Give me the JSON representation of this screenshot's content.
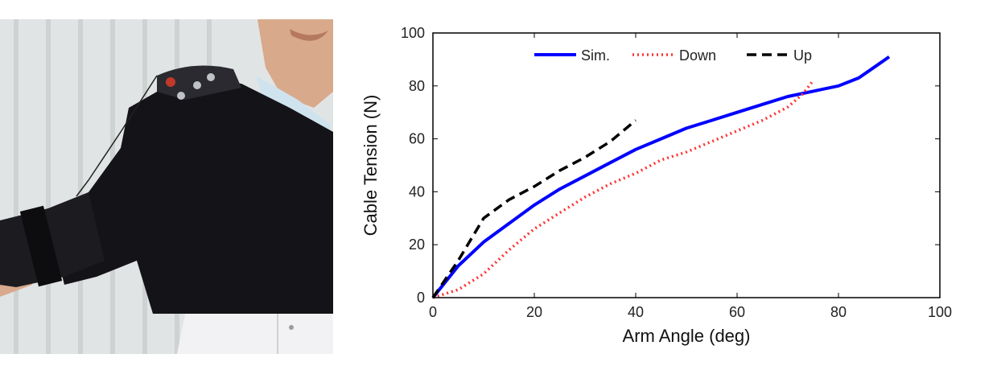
{
  "photo": {
    "icon": "person-wearing-shoulder-exosuit-photo"
  },
  "chart_data": {
    "type": "line",
    "title": "",
    "xlabel": "Arm Angle (deg)",
    "ylabel": "Cable Tension (N)",
    "xlim": [
      0,
      100
    ],
    "ylim": [
      0,
      100
    ],
    "xticks": [
      0,
      20,
      40,
      60,
      80,
      100
    ],
    "yticks": [
      0,
      20,
      40,
      60,
      80,
      100
    ],
    "grid": false,
    "legend_position": "top",
    "legend_orientation": "horizontal",
    "series": [
      {
        "name": "Sim.",
        "color": "#0000ff",
        "style": "solid",
        "x": [
          0,
          5,
          10,
          15,
          20,
          25,
          30,
          35,
          40,
          45,
          50,
          55,
          60,
          65,
          70,
          75,
          80,
          84,
          87,
          90
        ],
        "y": [
          0,
          12,
          21,
          28,
          35,
          41,
          46,
          51,
          56,
          60,
          64,
          67,
          70,
          73,
          76,
          78,
          80,
          83,
          87,
          91
        ]
      },
      {
        "name": "Down",
        "color": "#ff3333",
        "style": "dotted",
        "x": [
          0,
          5,
          10,
          15,
          20,
          25,
          30,
          35,
          40,
          45,
          50,
          55,
          60,
          65,
          70,
          73,
          75
        ],
        "y": [
          0,
          3,
          9,
          18,
          26,
          32,
          38,
          43,
          47,
          52,
          55,
          59,
          63,
          67,
          72,
          77,
          82
        ]
      },
      {
        "name": "Up",
        "color": "#000000",
        "style": "dashed",
        "x": [
          0,
          5,
          10,
          15,
          20,
          25,
          30,
          35,
          40
        ],
        "y": [
          0,
          14,
          30,
          37,
          42,
          48,
          53,
          59,
          67
        ]
      }
    ]
  }
}
